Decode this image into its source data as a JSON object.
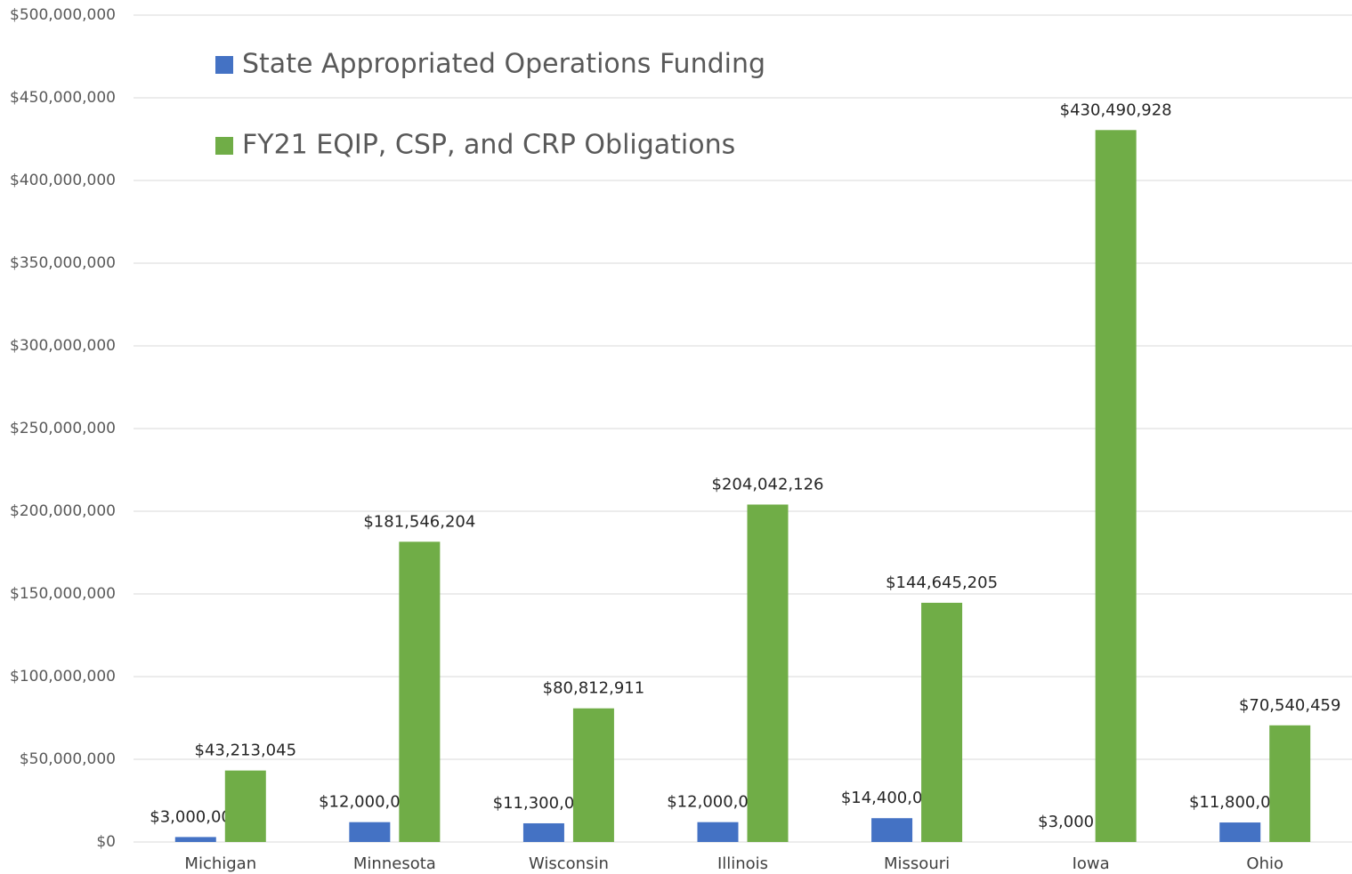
{
  "chart_data": {
    "type": "bar",
    "categories": [
      "Michigan",
      "Minnesota",
      "Wisconsin",
      "Illinois",
      "Missouri",
      "Iowa",
      "Ohio"
    ],
    "series": [
      {
        "name": "State Appropriated Operations Funding",
        "color": "#4472c4",
        "values": [
          3000000,
          12000000,
          11300000,
          12000000,
          14400000,
          3000,
          11800000
        ],
        "value_labels": [
          "$3,000,000",
          "$12,000,000",
          "$11,300,000",
          "$12,000,000",
          "$14,400,000",
          "$3,000",
          "$11,800,000"
        ]
      },
      {
        "name": "FY21 EQIP, CSP, and CRP Obligations",
        "color": "#70ad47",
        "values": [
          43213045,
          181546204,
          80812911,
          204042126,
          144645205,
          430490928,
          70540459
        ],
        "value_labels": [
          "$43,213,045",
          "$181,546,204",
          "$80,812,911",
          "$204,042,126",
          "$144,645,205",
          "$430,490,928",
          "$70,540,459"
        ]
      }
    ],
    "ylim": [
      0,
      500000000
    ],
    "yticks": [
      {
        "value": 0,
        "label": "$0"
      },
      {
        "value": 50000000,
        "label": "$50,000,000"
      },
      {
        "value": 100000000,
        "label": "$100,000,000"
      },
      {
        "value": 150000000,
        "label": "$150,000,000"
      },
      {
        "value": 200000000,
        "label": "$200,000,000"
      },
      {
        "value": 250000000,
        "label": "$250,000,000"
      },
      {
        "value": 300000000,
        "label": "$300,000,000"
      },
      {
        "value": 350000000,
        "label": "$350,000,000"
      },
      {
        "value": 400000000,
        "label": "$400,000,000"
      },
      {
        "value": 450000000,
        "label": "$450,000,000"
      },
      {
        "value": 500000000,
        "label": "$500,000,000"
      }
    ],
    "grid": true,
    "legend": "upper left"
  }
}
